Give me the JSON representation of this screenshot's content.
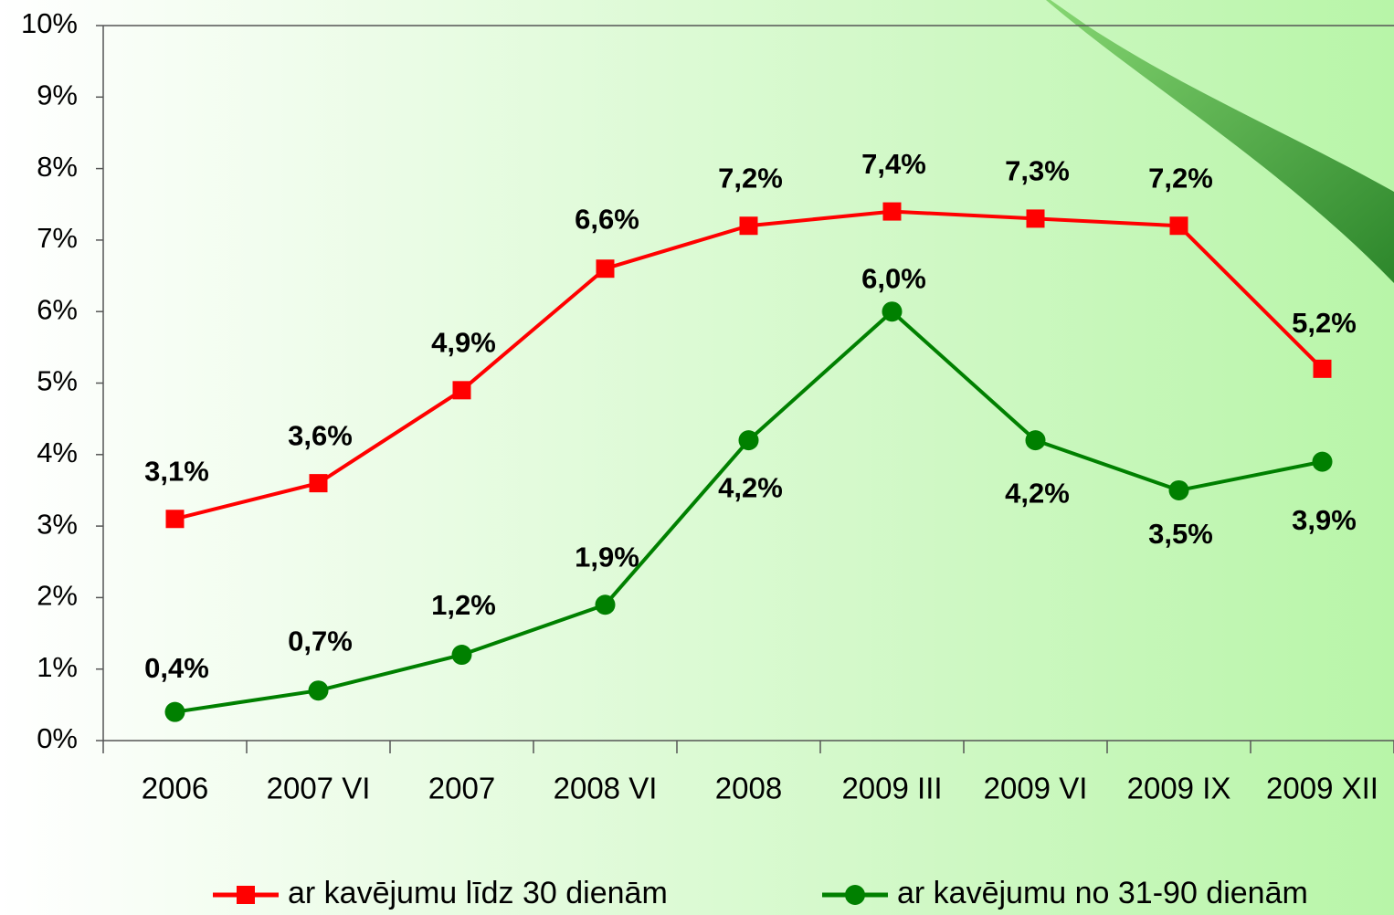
{
  "chart_data": {
    "type": "line",
    "categories": [
      "2006",
      "2007 VI",
      "2007",
      "2008 VI",
      "2008",
      "2009 III",
      "2009 VI",
      "2009 IX",
      "2009 XII"
    ],
    "series": [
      {
        "name": "ar kavējumu līdz 30 dienām",
        "color": "#ff0000",
        "marker": "square",
        "values": [
          3.1,
          3.6,
          4.9,
          6.6,
          7.2,
          7.4,
          7.3,
          7.2,
          5.2
        ],
        "value_labels": [
          "3,1%",
          "3,6%",
          "4,9%",
          "6,6%",
          "7,2%",
          "7,4%",
          "7,3%",
          "7,2%",
          "5,2%"
        ]
      },
      {
        "name": "ar kavējumu no 31-90 dienām",
        "color": "#008000",
        "marker": "circle",
        "values": [
          0.4,
          0.7,
          1.2,
          1.9,
          4.2,
          6.0,
          4.2,
          3.5,
          3.9
        ],
        "value_labels": [
          "0,4%",
          "0,7%",
          "1,2%",
          "1,9%",
          "4,2%",
          "6,0%",
          "4,2%",
          "3,5%",
          "3,9%"
        ]
      }
    ],
    "ylim": [
      0,
      10
    ],
    "yticks": [
      {
        "value": 0,
        "label": "0%"
      },
      {
        "value": 1,
        "label": "1%"
      },
      {
        "value": 2,
        "label": "2%"
      },
      {
        "value": 3,
        "label": "3%"
      },
      {
        "value": 4,
        "label": "4%"
      },
      {
        "value": 5,
        "label": "5%"
      },
      {
        "value": 6,
        "label": "6%"
      },
      {
        "value": 7,
        "label": "7%"
      },
      {
        "value": 8,
        "label": "8%"
      },
      {
        "value": 9,
        "label": "9%"
      },
      {
        "value": 10,
        "label": "10%"
      }
    ],
    "grid": false,
    "legend": "bottom"
  }
}
